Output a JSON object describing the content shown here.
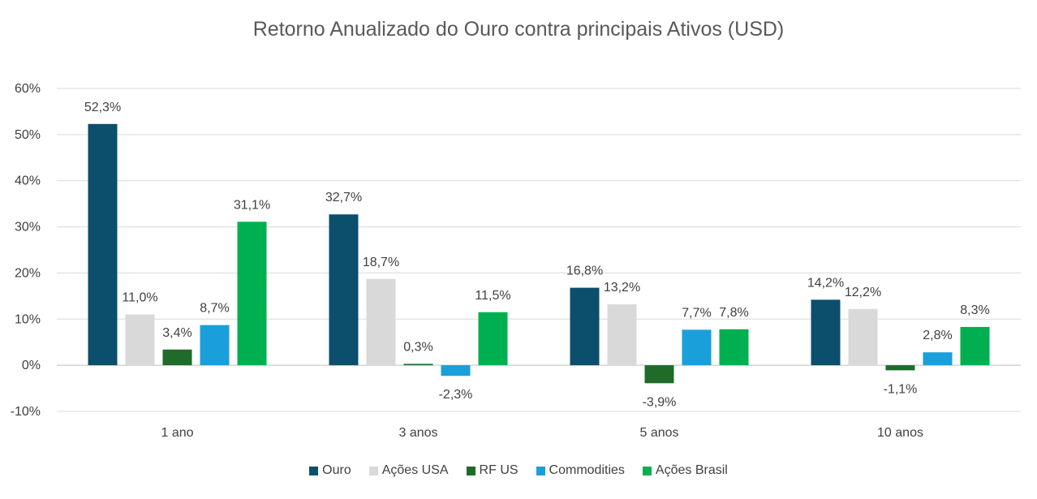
{
  "chart_data": {
    "type": "bar",
    "title": "Retorno Anualizado do Ouro contra principais Ativos (USD)",
    "xlabel": "",
    "ylabel": "",
    "ylim": [
      -10,
      60
    ],
    "yticks": [
      60,
      50,
      40,
      30,
      20,
      10,
      0,
      -10
    ],
    "ytick_labels": [
      "60%",
      "50%",
      "40%",
      "30%",
      "20%",
      "10%",
      "0%",
      "-10%"
    ],
    "grid": true,
    "legend_position": "bottom",
    "categories": [
      "1 ano",
      "3 anos",
      "5 anos",
      "10 anos"
    ],
    "series": [
      {
        "name": "Ouro",
        "color": "#0b4f6c",
        "values": [
          52.3,
          32.7,
          16.8,
          14.2
        ],
        "labels": [
          "52,3%",
          "32,7%",
          "16,8%",
          "14,2%"
        ]
      },
      {
        "name": "Ações USA",
        "color": "#d9d9d9",
        "values": [
          11.0,
          18.7,
          13.2,
          12.2
        ],
        "labels": [
          "11,0%",
          "18,7%",
          "13,2%",
          "12,2%"
        ]
      },
      {
        "name": "RF US",
        "color": "#1e6b2a",
        "values": [
          3.4,
          0.3,
          -3.9,
          -1.1
        ],
        "labels": [
          "3,4%",
          "0,3%",
          "-3,9%",
          "-1,1%"
        ]
      },
      {
        "name": "Commodities",
        "color": "#1a9fda",
        "values": [
          8.7,
          -2.3,
          7.7,
          2.8
        ],
        "labels": [
          "8,7%",
          "-2,3%",
          "7,7%",
          "2,8%"
        ]
      },
      {
        "name": "Ações Brasil",
        "color": "#00b050",
        "values": [
          31.1,
          11.5,
          7.8,
          8.3
        ],
        "labels": [
          "31,1%",
          "11,5%",
          "7,8%",
          "8,3%"
        ]
      }
    ]
  }
}
